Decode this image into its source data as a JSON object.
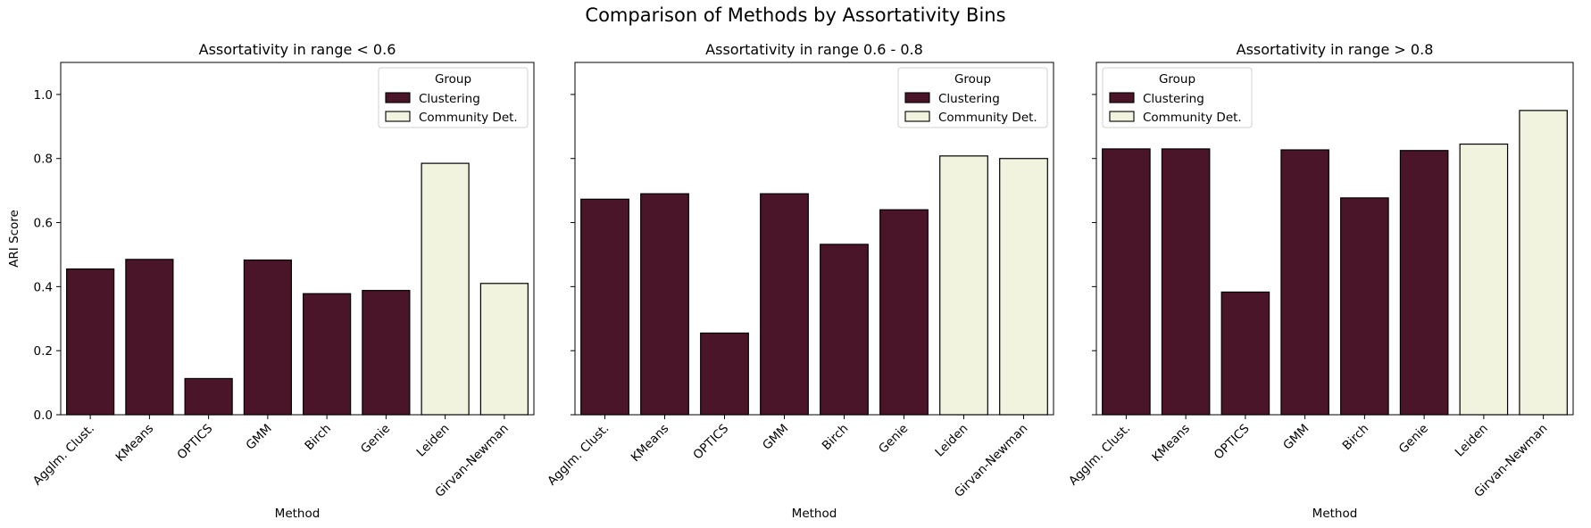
{
  "figure_title": "Comparison of Methods by Assortativity Bins",
  "colors": {
    "clustering": "#4a1429",
    "community": "#f1f3de",
    "edge": "#000000"
  },
  "chart_data": [
    {
      "type": "bar",
      "title": "Assortativity in range < 0.6",
      "xlabel": "Method",
      "ylabel": "ARI Score",
      "ylim": [
        0,
        1.1
      ],
      "yticks": [
        "0.0",
        "0.2",
        "0.4",
        "0.6",
        "0.8",
        "1.0"
      ],
      "show_ytick_labels": true,
      "categories": [
        "Agglm. Clust.",
        "KMeans",
        "OPTICS",
        "GMM",
        "Birch",
        "Genie",
        "Leiden",
        "Girvan-Newman"
      ],
      "values": [
        0.455,
        0.485,
        0.113,
        0.483,
        0.378,
        0.388,
        0.785,
        0.41
      ],
      "groups": [
        "Clustering",
        "Clustering",
        "Clustering",
        "Clustering",
        "Clustering",
        "Clustering",
        "Community Det.",
        "Community Det."
      ],
      "legend": {
        "title": "Group",
        "entries": [
          "Clustering",
          "Community Det."
        ],
        "position": "top-right"
      }
    },
    {
      "type": "bar",
      "title": "Assortativity in range 0.6 - 0.8",
      "xlabel": "Method",
      "ylabel": "",
      "ylim": [
        0,
        1.1
      ],
      "yticks": [
        "0.0",
        "0.2",
        "0.4",
        "0.6",
        "0.8",
        "1.0"
      ],
      "show_ytick_labels": false,
      "categories": [
        "Agglm. Clust.",
        "KMeans",
        "OPTICS",
        "GMM",
        "Birch",
        "Genie",
        "Leiden",
        "Girvan-Newman"
      ],
      "values": [
        0.673,
        0.69,
        0.255,
        0.69,
        0.532,
        0.64,
        0.808,
        0.8
      ],
      "groups": [
        "Clustering",
        "Clustering",
        "Clustering",
        "Clustering",
        "Clustering",
        "Clustering",
        "Community Det.",
        "Community Det."
      ],
      "legend": {
        "title": "Group",
        "entries": [
          "Clustering",
          "Community Det."
        ],
        "position": "top-right"
      }
    },
    {
      "type": "bar",
      "title": "Assortativity in range > 0.8",
      "xlabel": "Method",
      "ylabel": "",
      "ylim": [
        0,
        1.1
      ],
      "yticks": [
        "0.0",
        "0.2",
        "0.4",
        "0.6",
        "0.8",
        "1.0"
      ],
      "show_ytick_labels": false,
      "categories": [
        "Agglm. Clust.",
        "KMeans",
        "OPTICS",
        "GMM",
        "Birch",
        "Genie",
        "Leiden",
        "Girvan-Newman"
      ],
      "values": [
        0.83,
        0.83,
        0.383,
        0.827,
        0.677,
        0.825,
        0.845,
        0.95
      ],
      "groups": [
        "Clustering",
        "Clustering",
        "Clustering",
        "Clustering",
        "Clustering",
        "Clustering",
        "Community Det.",
        "Community Det."
      ],
      "legend": {
        "title": "Group",
        "entries": [
          "Clustering",
          "Community Det."
        ],
        "position": "top-left"
      }
    }
  ]
}
